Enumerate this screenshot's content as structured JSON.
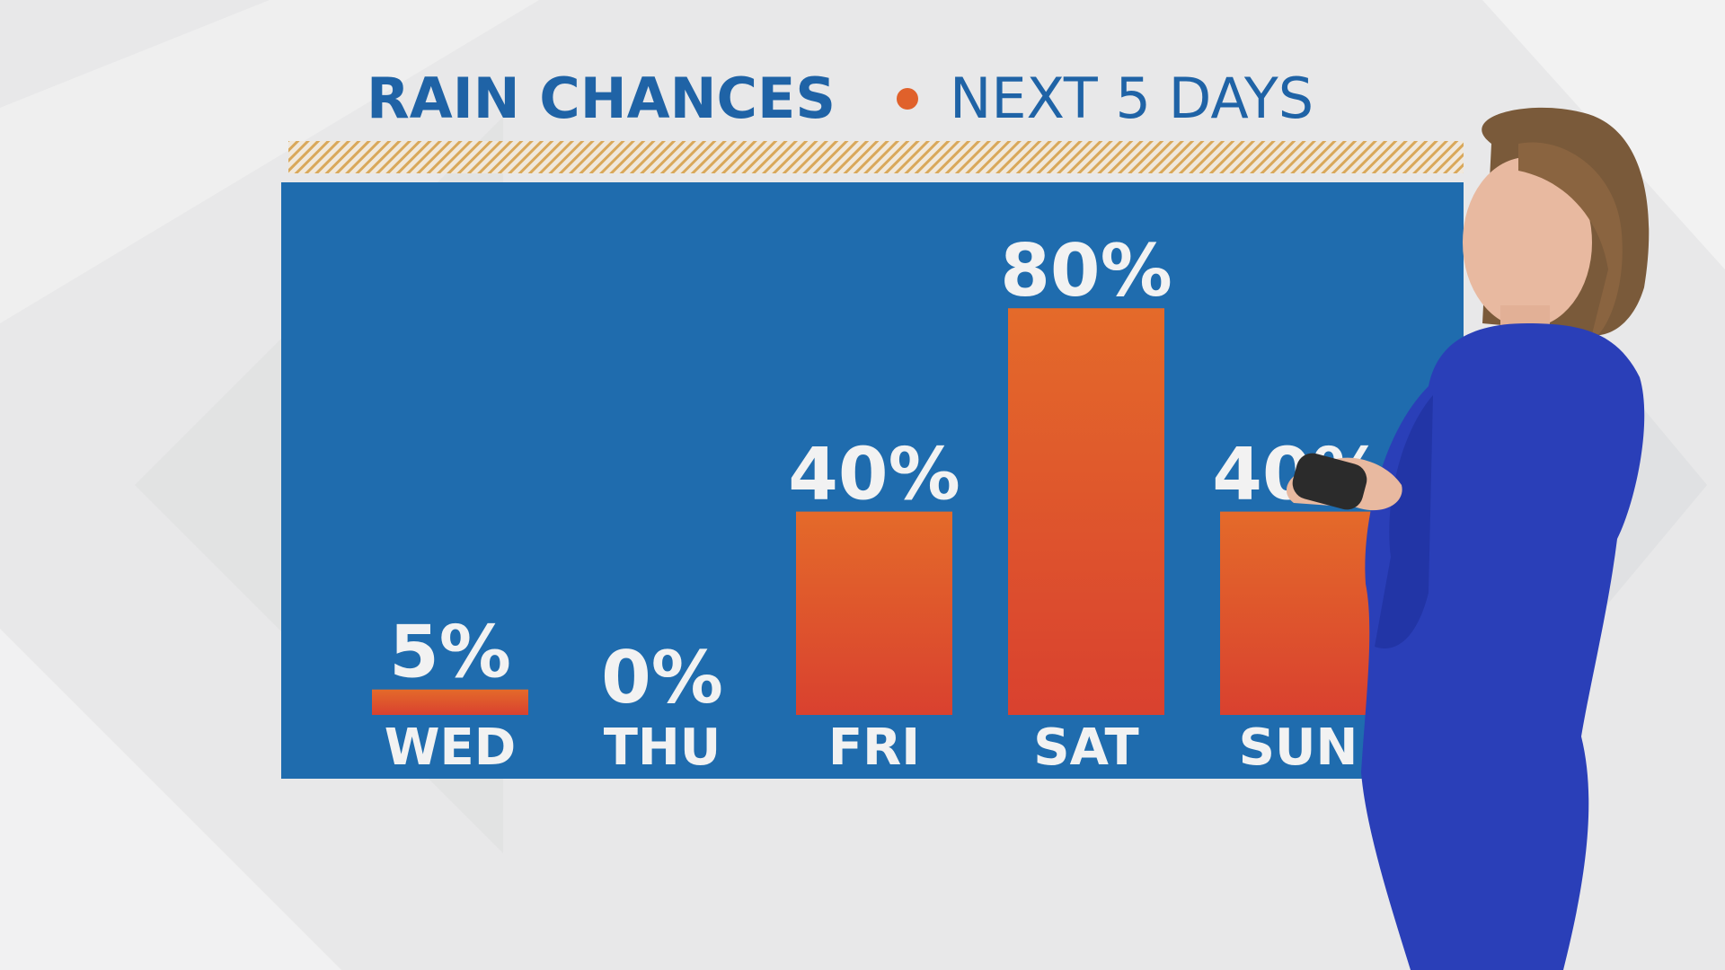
{
  "chart_data": {
    "type": "bar",
    "title": "RAIN CHANCES",
    "subtitle": "NEXT 5 DAYS",
    "categories": [
      "WED",
      "THU",
      "FRI",
      "SAT",
      "SUN"
    ],
    "values": [
      5,
      0,
      40,
      80,
      40
    ],
    "value_labels": [
      "5%",
      "0%",
      "40%",
      "80%",
      "40%"
    ],
    "color": "#e0612b",
    "ylim": [
      0,
      100
    ]
  }
}
